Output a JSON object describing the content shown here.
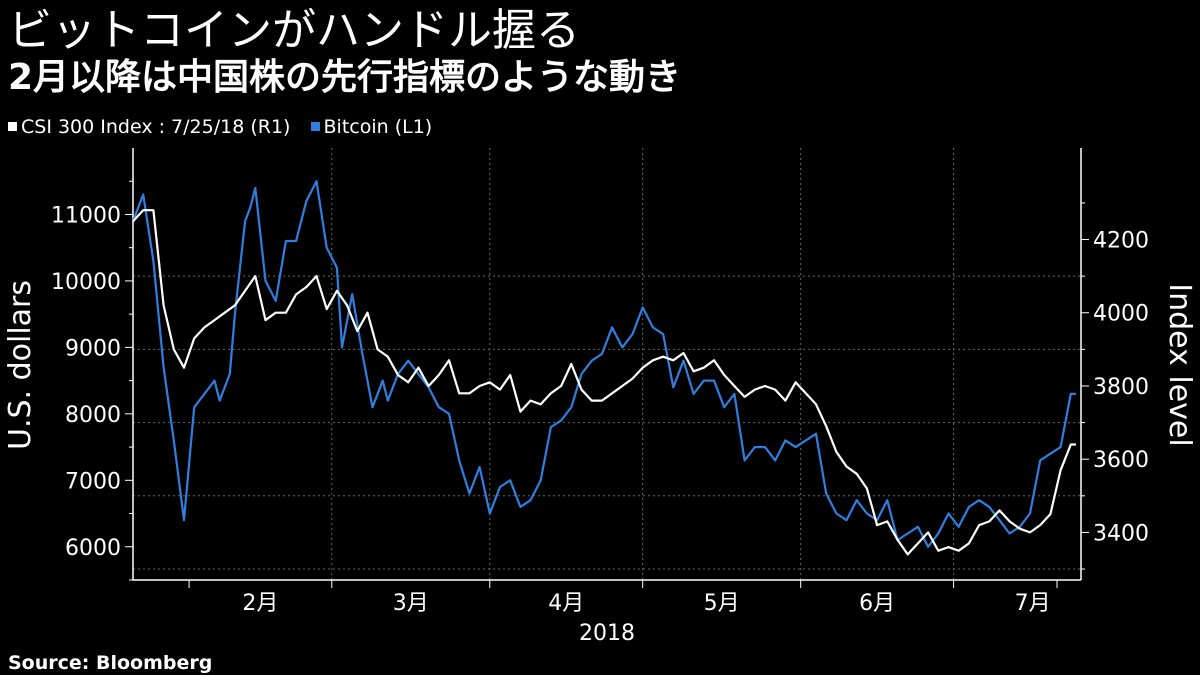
{
  "title": "ビットコインがハンドル握る",
  "subtitle": "2月以降は中国株の先行指標のような動き",
  "legend": {
    "csi": "CSI 300 Index : 7/25/18 (R1)",
    "btc": "Bitcoin (L1)"
  },
  "source": "Source: Bloomberg",
  "colors": {
    "csi": "#ffffff",
    "btc": "#2f7fe0",
    "grid": "#666666",
    "background": "#000000"
  },
  "chart_data": {
    "type": "line",
    "xlabel": "2018",
    "ylabel_left": "U.S. dollars",
    "ylabel_right": "Index level",
    "x_range": [
      "2018-01-21",
      "2018-07-26"
    ],
    "y_left_range": [
      5500,
      12000
    ],
    "y_right_range": [
      3270,
      4450
    ],
    "y_left_ticks": [
      6000,
      7000,
      8000,
      9000,
      10000,
      11000
    ],
    "y_right_ticks": [
      3400,
      3600,
      3800,
      4000,
      4200
    ],
    "x_month_labels": [
      {
        "date": "2018-02-01",
        "label": "2月"
      },
      {
        "date": "2018-03-01",
        "label": "3月"
      },
      {
        "date": "2018-04-01",
        "label": "4月"
      },
      {
        "date": "2018-05-01",
        "label": "5月"
      },
      {
        "date": "2018-06-01",
        "label": "6月"
      },
      {
        "date": "2018-07-01",
        "label": "7月"
      }
    ],
    "grid": true,
    "series": [
      {
        "name": "Bitcoin (L1)",
        "axis": "left",
        "color": "#2f7fe0",
        "x": [
          "2018-01-21",
          "2018-01-23",
          "2018-01-25",
          "2018-01-27",
          "2018-01-29",
          "2018-01-31",
          "2018-02-02",
          "2018-02-04",
          "2018-02-06",
          "2018-02-07",
          "2018-02-08",
          "2018-02-09",
          "2018-02-10",
          "2018-02-11",
          "2018-02-12",
          "2018-02-13",
          "2018-02-14",
          "2018-02-16",
          "2018-02-18",
          "2018-02-20",
          "2018-02-22",
          "2018-02-24",
          "2018-02-26",
          "2018-02-28",
          "2018-03-02",
          "2018-03-03",
          "2018-03-05",
          "2018-03-07",
          "2018-03-09",
          "2018-03-11",
          "2018-03-12",
          "2018-03-14",
          "2018-03-16",
          "2018-03-18",
          "2018-03-20",
          "2018-03-22",
          "2018-03-24",
          "2018-03-26",
          "2018-03-28",
          "2018-03-30",
          "2018-04-01",
          "2018-04-03",
          "2018-04-05",
          "2018-04-07",
          "2018-04-09",
          "2018-04-11",
          "2018-04-13",
          "2018-04-15",
          "2018-04-17",
          "2018-04-19",
          "2018-04-21",
          "2018-04-23",
          "2018-04-25",
          "2018-04-27",
          "2018-04-29",
          "2018-05-01",
          "2018-05-03",
          "2018-05-05",
          "2018-05-07",
          "2018-05-09",
          "2018-05-11",
          "2018-05-13",
          "2018-05-15",
          "2018-05-17",
          "2018-05-19",
          "2018-05-21",
          "2018-05-23",
          "2018-05-25",
          "2018-05-27",
          "2018-05-29",
          "2018-05-31",
          "2018-06-02",
          "2018-06-04",
          "2018-06-06",
          "2018-06-08",
          "2018-06-10",
          "2018-06-12",
          "2018-06-14",
          "2018-06-16",
          "2018-06-18",
          "2018-06-20",
          "2018-06-22",
          "2018-06-24",
          "2018-06-26",
          "2018-06-28",
          "2018-06-30",
          "2018-07-02",
          "2018-07-04",
          "2018-07-06",
          "2018-07-08",
          "2018-07-10",
          "2018-07-12",
          "2018-07-14",
          "2018-07-16",
          "2018-07-18",
          "2018-07-20",
          "2018-07-22",
          "2018-07-24",
          "2018-07-25"
        ],
        "y": [
          10900,
          11300,
          10300,
          8700,
          7600,
          6400,
          8100,
          8300,
          8500,
          8200,
          8400,
          8600,
          9500,
          10200,
          10900,
          11100,
          11400,
          10000,
          9700,
          10600,
          10600,
          11200,
          11500,
          10500,
          10200,
          9000,
          9800,
          8900,
          8100,
          8500,
          8200,
          8600,
          8800,
          8600,
          8400,
          8100,
          8000,
          7300,
          6800,
          7200,
          6500,
          6900,
          7000,
          6600,
          6700,
          7000,
          7800,
          7900,
          8100,
          8600,
          8800,
          8900,
          9300,
          9000,
          9200,
          9600,
          9300,
          9200,
          8400,
          8800,
          8300,
          8500,
          8500,
          8100,
          8300,
          7300,
          7500,
          7500,
          7300,
          7600,
          7500,
          7600,
          7700,
          6800,
          6500,
          6400,
          6700,
          6500,
          6400,
          6700,
          6100,
          6200,
          6300,
          6000,
          6200,
          6500,
          6300,
          6600,
          6700,
          6600,
          6400,
          6200,
          6300,
          6500,
          7300,
          7400,
          7500,
          8300,
          8300
        ]
      },
      {
        "name": "CSI 300 Index : 7/25/18 (R1)",
        "axis": "right",
        "color": "#ffffff",
        "x": [
          "2018-01-21",
          "2018-01-23",
          "2018-01-25",
          "2018-01-27",
          "2018-01-29",
          "2018-01-31",
          "2018-02-02",
          "2018-02-04",
          "2018-02-06",
          "2018-02-08",
          "2018-02-10",
          "2018-02-12",
          "2018-02-14",
          "2018-02-16",
          "2018-02-18",
          "2018-02-20",
          "2018-02-22",
          "2018-02-24",
          "2018-02-26",
          "2018-02-28",
          "2018-03-02",
          "2018-03-04",
          "2018-03-06",
          "2018-03-08",
          "2018-03-10",
          "2018-03-12",
          "2018-03-14",
          "2018-03-16",
          "2018-03-18",
          "2018-03-20",
          "2018-03-22",
          "2018-03-24",
          "2018-03-26",
          "2018-03-28",
          "2018-03-30",
          "2018-04-01",
          "2018-04-03",
          "2018-04-05",
          "2018-04-07",
          "2018-04-09",
          "2018-04-11",
          "2018-04-13",
          "2018-04-15",
          "2018-04-17",
          "2018-04-19",
          "2018-04-21",
          "2018-04-23",
          "2018-04-25",
          "2018-04-27",
          "2018-04-29",
          "2018-05-01",
          "2018-05-03",
          "2018-05-05",
          "2018-05-07",
          "2018-05-09",
          "2018-05-11",
          "2018-05-13",
          "2018-05-15",
          "2018-05-17",
          "2018-05-19",
          "2018-05-21",
          "2018-05-23",
          "2018-05-25",
          "2018-05-27",
          "2018-05-29",
          "2018-05-31",
          "2018-06-02",
          "2018-06-04",
          "2018-06-06",
          "2018-06-08",
          "2018-06-10",
          "2018-06-12",
          "2018-06-14",
          "2018-06-16",
          "2018-06-18",
          "2018-06-20",
          "2018-06-22",
          "2018-06-24",
          "2018-06-26",
          "2018-06-28",
          "2018-06-30",
          "2018-07-02",
          "2018-07-04",
          "2018-07-06",
          "2018-07-08",
          "2018-07-10",
          "2018-07-12",
          "2018-07-14",
          "2018-07-16",
          "2018-07-18",
          "2018-07-20",
          "2018-07-22",
          "2018-07-24",
          "2018-07-25"
        ],
        "y": [
          4250,
          4280,
          4280,
          4020,
          3900,
          3850,
          3930,
          3960,
          3980,
          4000,
          4020,
          4060,
          4100,
          3980,
          4000,
          4000,
          4050,
          4070,
          4100,
          4010,
          4060,
          4020,
          3950,
          4000,
          3900,
          3880,
          3830,
          3810,
          3850,
          3800,
          3830,
          3870,
          3780,
          3780,
          3800,
          3810,
          3790,
          3830,
          3730,
          3760,
          3750,
          3780,
          3800,
          3860,
          3790,
          3760,
          3760,
          3780,
          3800,
          3820,
          3850,
          3870,
          3880,
          3870,
          3890,
          3840,
          3850,
          3870,
          3830,
          3800,
          3770,
          3790,
          3800,
          3790,
          3760,
          3810,
          3780,
          3750,
          3690,
          3620,
          3580,
          3560,
          3520,
          3420,
          3430,
          3380,
          3340,
          3370,
          3400,
          3350,
          3360,
          3350,
          3370,
          3420,
          3430,
          3460,
          3430,
          3410,
          3400,
          3420,
          3450,
          3570,
          3640,
          3640
        ]
      }
    ]
  }
}
